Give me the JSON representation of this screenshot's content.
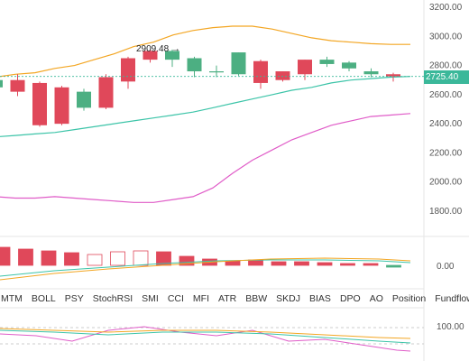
{
  "axis": {
    "price_ticks": [
      "3200.00",
      "3000.00",
      "2800.00",
      "2600.00",
      "2400.00",
      "2200.00",
      "2000.00",
      "1800.00"
    ],
    "price_ticks_values": [
      3200,
      3000,
      2800,
      2600,
      2400,
      2200,
      2000,
      1800
    ],
    "macd_tick": "0.00",
    "osc_tick": "100.00"
  },
  "last_price": "2725.40",
  "high_marker": "2909.48",
  "colors": {
    "up": "#4caf82",
    "down": "#e0485a",
    "upper_band": "#f3a623",
    "mid_band": "#3cc4a8",
    "lower_band": "#e05cc8",
    "tag": "#3bb89a"
  },
  "indicator_tabs": [
    "MTM",
    "BOLL",
    "PSY",
    "StochRSI",
    "SMI",
    "CCI",
    "MFI",
    "ATR",
    "BBW",
    "SKDJ",
    "BIAS",
    "DPO",
    "AO",
    "Position",
    "Fundflow"
  ],
  "chart_data": {
    "type": "candlestick",
    "ylim": [
      1700,
      3260
    ],
    "candles": [
      {
        "o": 2650,
        "c": 2700,
        "h": 2720,
        "l": 2620
      },
      {
        "o": 2700,
        "c": 2620,
        "h": 2740,
        "l": 2590
      },
      {
        "o": 2680,
        "c": 2390,
        "h": 2690,
        "l": 2380
      },
      {
        "o": 2650,
        "c": 2400,
        "h": 2660,
        "l": 2390
      },
      {
        "o": 2510,
        "c": 2620,
        "h": 2640,
        "l": 2490
      },
      {
        "o": 2720,
        "c": 2510,
        "h": 2740,
        "l": 2500
      },
      {
        "o": 2850,
        "c": 2690,
        "h": 2860,
        "l": 2640
      },
      {
        "o": 2900,
        "c": 2840,
        "h": 2909,
        "l": 2820
      },
      {
        "o": 2840,
        "c": 2900,
        "h": 2910,
        "l": 2790
      },
      {
        "o": 2760,
        "c": 2850,
        "h": 2860,
        "l": 2720
      },
      {
        "o": 2760,
        "c": 2760,
        "h": 2800,
        "l": 2720
      },
      {
        "o": 2740,
        "c": 2890,
        "h": 2890,
        "l": 2730
      },
      {
        "o": 2830,
        "c": 2680,
        "h": 2840,
        "l": 2640
      },
      {
        "o": 2760,
        "c": 2700,
        "h": 2760,
        "l": 2690
      },
      {
        "o": 2840,
        "c": 2740,
        "h": 2840,
        "l": 2700
      },
      {
        "o": 2810,
        "c": 2840,
        "h": 2860,
        "l": 2790
      },
      {
        "o": 2780,
        "c": 2820,
        "h": 2830,
        "l": 2760
      },
      {
        "o": 2740,
        "c": 2760,
        "h": 2780,
        "l": 2720
      },
      {
        "o": 2740,
        "c": 2725,
        "h": 2750,
        "l": 2690
      }
    ],
    "upper_band": [
      2720,
      2740,
      2750,
      2780,
      2800,
      2840,
      2880,
      2930,
      2960,
      3010,
      3040,
      3060,
      3070,
      3070,
      3050,
      3020,
      2990,
      2970,
      2960,
      2950,
      2945,
      2945
    ],
    "mid_band": [
      2310,
      2320,
      2330,
      2340,
      2360,
      2380,
      2400,
      2420,
      2440,
      2460,
      2480,
      2510,
      2540,
      2570,
      2600,
      2630,
      2650,
      2680,
      2700,
      2710,
      2720,
      2725
    ],
    "lower_band": [
      1900,
      1890,
      1890,
      1900,
      1890,
      1880,
      1870,
      1860,
      1860,
      1880,
      1900,
      1960,
      2060,
      2150,
      2220,
      2290,
      2340,
      2390,
      2420,
      2450,
      2460,
      2470
    ]
  }
}
